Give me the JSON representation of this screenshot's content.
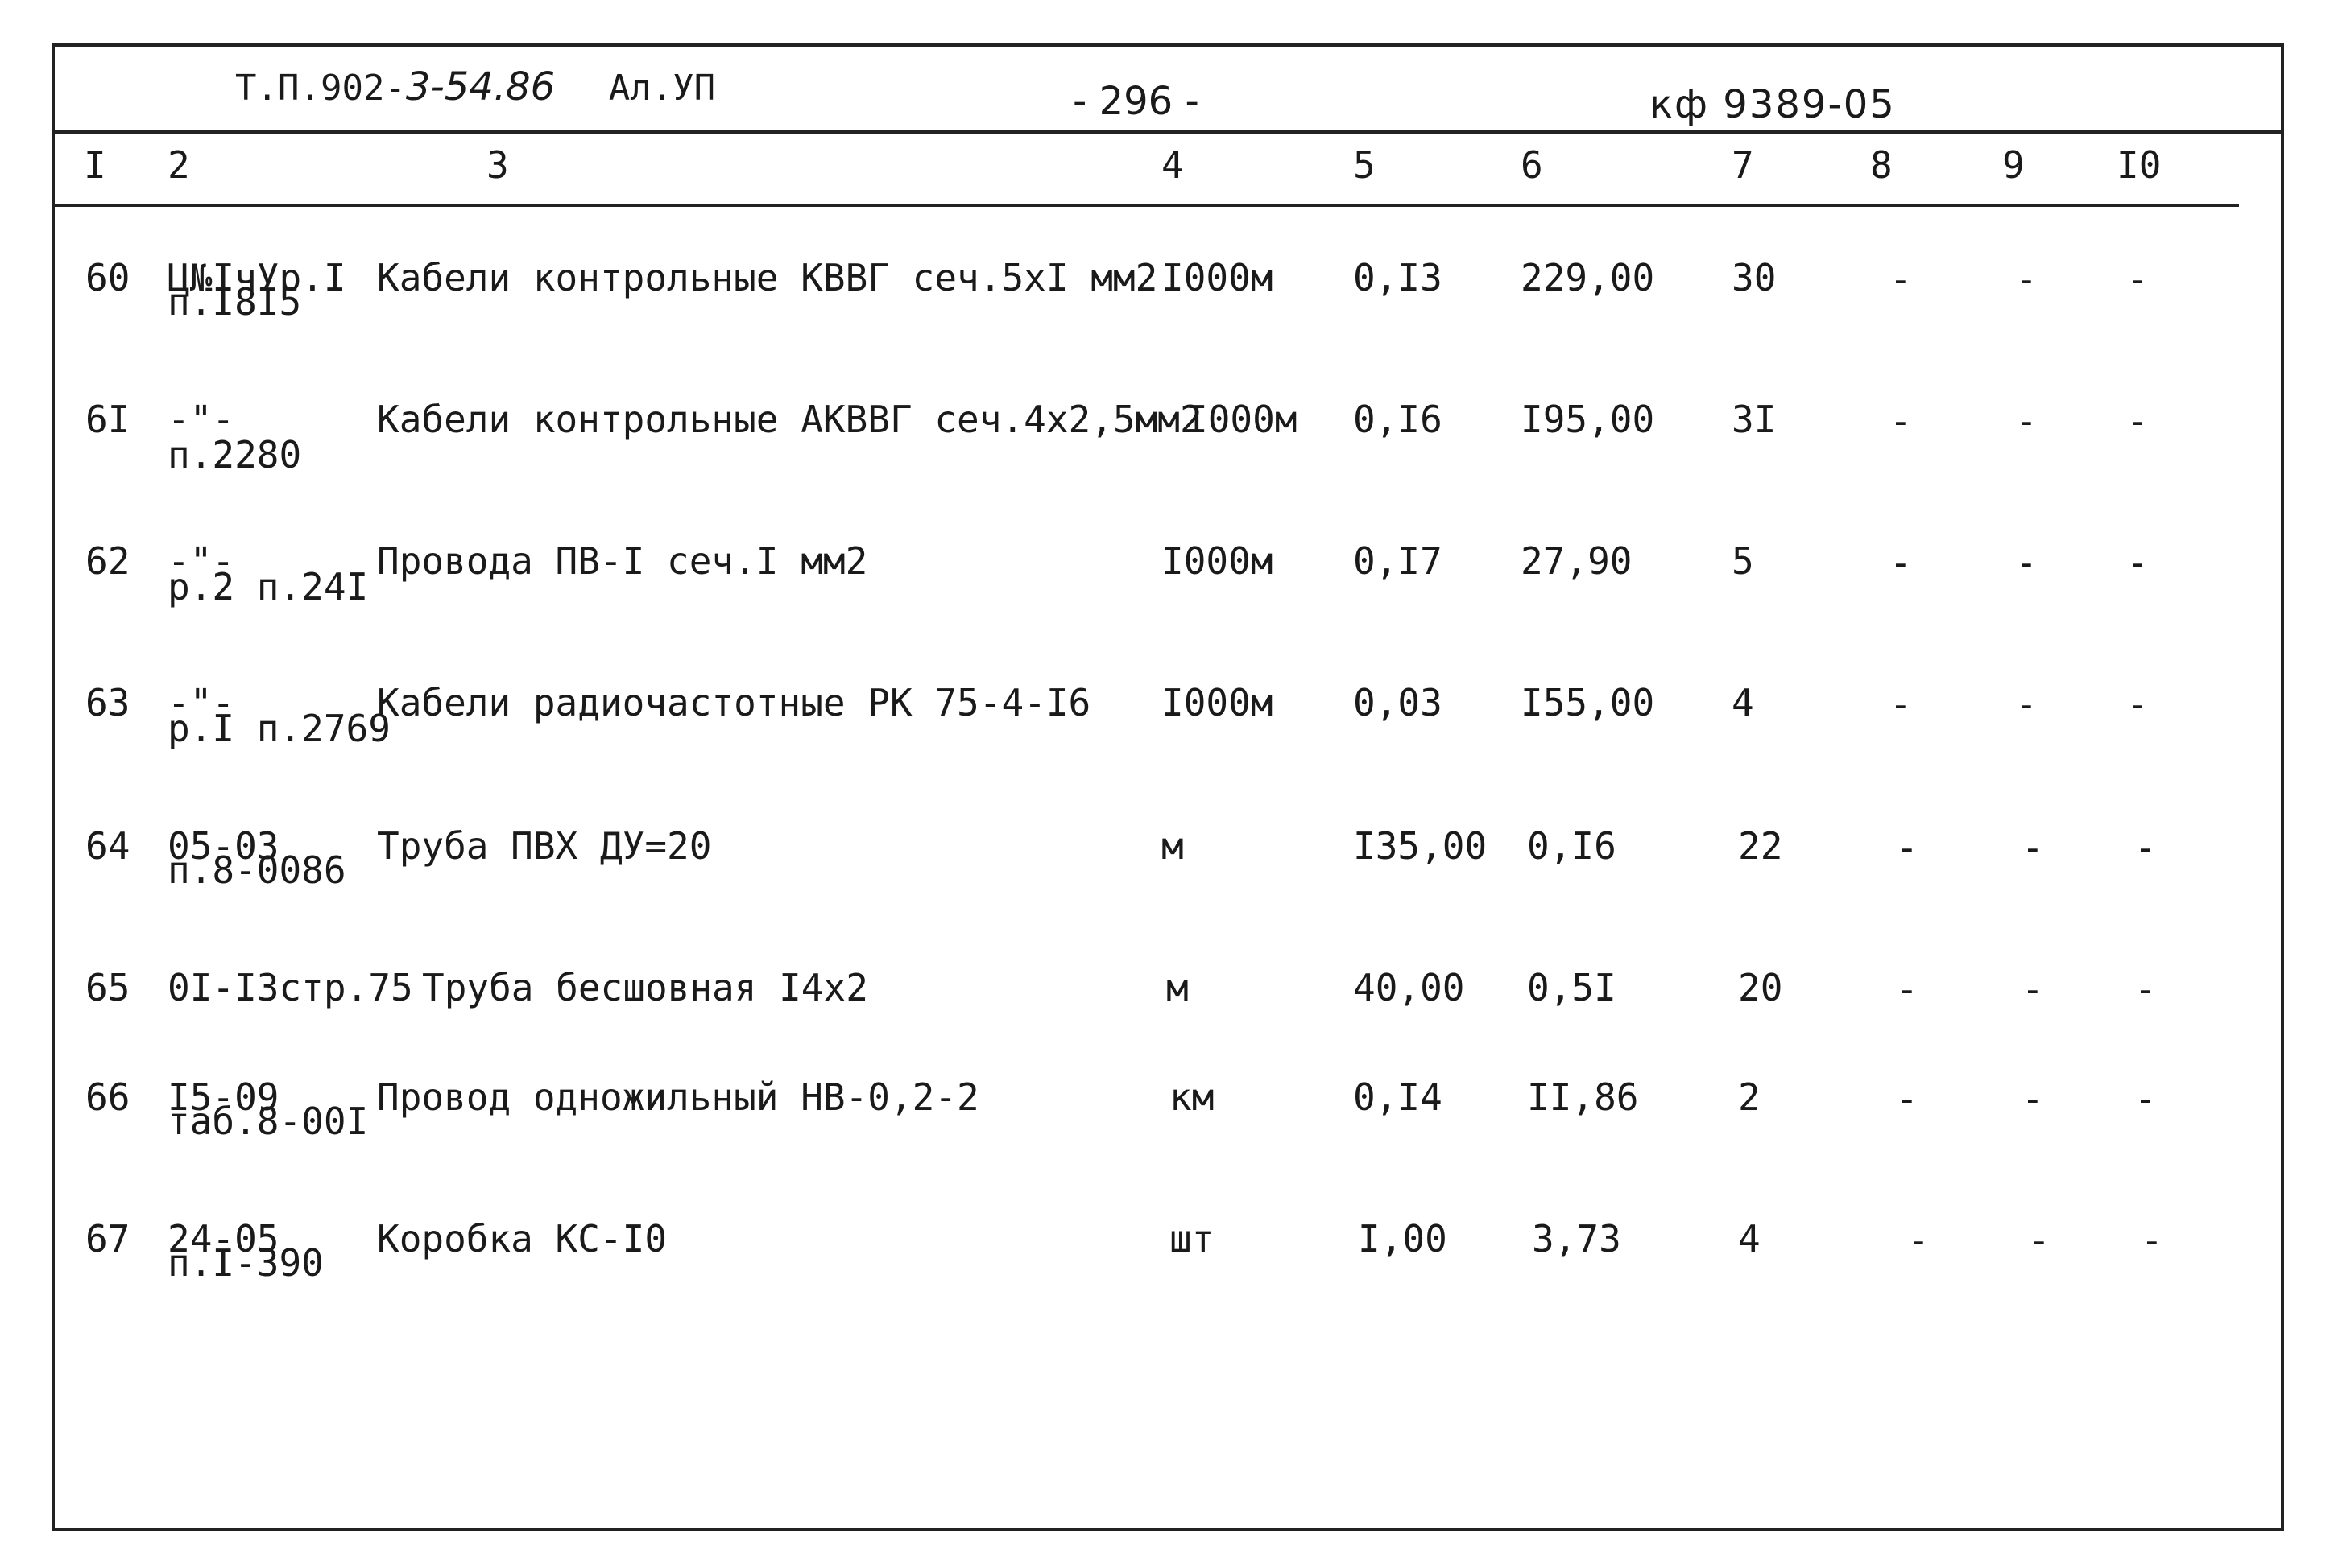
{
  "header": {
    "doc_ref_printed_a": "Т.П.902-",
    "doc_ref_handwritten": "3-54.86",
    "doc_ref_printed_b": "Ал.УП",
    "page_number": "- 296 -",
    "stamp_code": "кф 9389-05"
  },
  "columns": [
    "I",
    "2",
    "3",
    "4",
    "5",
    "6",
    "7",
    "8",
    "9",
    "I0"
  ],
  "rows": [
    {
      "n": "60",
      "ref1": "Ц№IчУр.I",
      "ref2": "п.I8I5",
      "name": "Кабели контрольные КВВГ сеч.5хI мм2",
      "unit": "I000м",
      "qty": "0,I3",
      "price": "229,00",
      "total": "30",
      "c8": "-",
      "c9": "-",
      "c10": "-"
    },
    {
      "n": "6I",
      "ref1": "-\"-",
      "ref2": "п.2280",
      "name": "Кабели контрольные АКВВГ сеч.4х2,5мм2",
      "unit": "I000м",
      "qty": "0,I6",
      "price": "I95,00",
      "total": "3I",
      "c8": "-",
      "c9": "-",
      "c10": "-"
    },
    {
      "n": "62",
      "ref1": "-\"-",
      "ref2": "р.2 п.24I",
      "name": "Провода ПВ-I сеч.I мм2",
      "unit": "I000м",
      "qty": "0,I7",
      "price": "27,90",
      "total": "5",
      "c8": "-",
      "c9": "-",
      "c10": "-"
    },
    {
      "n": "63",
      "ref1": "-\"-",
      "ref2": "р.I п.2769",
      "name": "Кабели радиочастотные РК 75-4-I6",
      "unit": "I000м",
      "qty": "0,03",
      "price": "I55,00",
      "total": "4",
      "c8": "-",
      "c9": "-",
      "c10": "-"
    },
    {
      "n": "64",
      "ref1": "05-03",
      "ref2": "п.8-0086",
      "name": "Труба ПВХ ДУ=20",
      "unit": "м",
      "qty": "I35,00",
      "price": "0,I6",
      "total": "22",
      "c8": "-",
      "c9": "-",
      "c10": "-"
    },
    {
      "n": "65",
      "ref1": "0I-I3стр.75",
      "ref2": "",
      "name": "Труба бесшовная I4х2",
      "unit": "м",
      "qty": "40,00",
      "price": "0,5I",
      "total": "20",
      "c8": "-",
      "c9": "-",
      "c10": "-"
    },
    {
      "n": "66",
      "ref1": "I5-09",
      "ref2": "таб.8-00I",
      "name": "Провод одножильный НВ-0,2-2",
      "unit": "км",
      "qty": "0,I4",
      "price": "II,86",
      "total": "2",
      "c8": "-",
      "c9": "-",
      "c10": "-"
    },
    {
      "n": "67",
      "ref1": "24-05",
      "ref2": "п.I-390",
      "name": "Коробка КС-I0",
      "unit": "шт",
      "qty": "I,00",
      "price": "3,73",
      "total": "4",
      "c8": "-",
      "c9": "-",
      "c10": "-"
    }
  ]
}
